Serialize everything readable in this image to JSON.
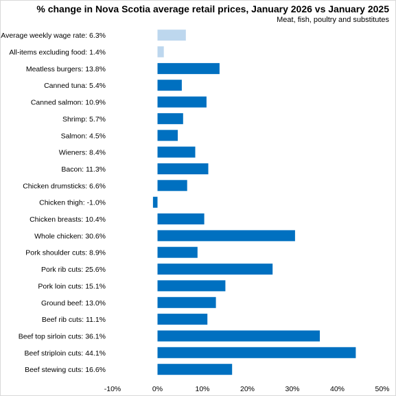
{
  "chart_data": {
    "type": "bar",
    "orientation": "horizontal",
    "title": "% change in Nova Scotia average retail prices, January 2026 vs January 2025",
    "subtitle": "Meat,  fish, poultry and substitutes",
    "categories": [
      "Average weekly wage rate: 6.3%",
      "All-items excluding food: 1.4%",
      "Meatless burgers: 13.8%",
      "Canned tuna: 5.4%",
      "Canned salmon: 10.9%",
      "Shrimp: 5.7%",
      "Salmon: 4.5%",
      "Wieners: 8.4%",
      "Bacon: 11.3%",
      "Chicken drumsticks: 6.6%",
      "Chicken thigh: -1.0%",
      "Chicken breasts: 10.4%",
      "Whole chicken: 30.6%",
      "Pork shoulder cuts: 8.9%",
      "Pork rib cuts: 25.6%",
      "Pork loin cuts: 15.1%",
      "Ground beef: 13.0%",
      "Beef rib cuts: 11.1%",
      "Beef top sirloin cuts: 36.1%",
      "Beef striploin cuts: 44.1%",
      "Beef stewing cuts: 16.6%"
    ],
    "values": [
      6.3,
      1.4,
      13.8,
      5.4,
      10.9,
      5.7,
      4.5,
      8.4,
      11.3,
      6.6,
      -1.0,
      10.4,
      30.6,
      8.9,
      25.6,
      15.1,
      13.0,
      11.1,
      36.1,
      44.1,
      16.6
    ],
    "xlim": [
      -10,
      50
    ],
    "xticks": [
      "-10%",
      "0%",
      "10%",
      "20%",
      "30%",
      "40%",
      "50%"
    ],
    "xtick_values": [
      -10,
      0,
      10,
      20,
      30,
      40,
      50
    ],
    "grid": false,
    "colors": {
      "highlight": "#bdd7ee",
      "primary": "#0070c0"
    },
    "highlight_count": 2
  }
}
